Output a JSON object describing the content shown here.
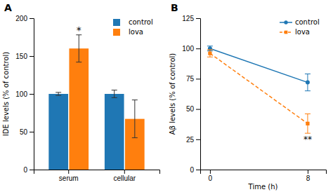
{
  "chart_data": [
    {
      "type": "bar",
      "title": "A",
      "categories": [
        "serum",
        "cellular"
      ],
      "series": [
        {
          "name": "control",
          "values": [
            100,
            100
          ],
          "errors": [
            2,
            5
          ]
        },
        {
          "name": "lova",
          "values": [
            160,
            67
          ],
          "errors": [
            18,
            25
          ]
        }
      ],
      "ylabel": "IDE levels (% of control)",
      "ylim": [
        0,
        200
      ],
      "yticks": [
        0,
        50,
        100,
        150,
        200
      ],
      "annotations": [
        {
          "text": "*",
          "x": "serum",
          "series": "lova"
        }
      ],
      "legend": "upper right",
      "grid": false
    },
    {
      "type": "line",
      "title": "B",
      "x": [
        0,
        8
      ],
      "series": [
        {
          "name": "control",
          "values": [
            100,
            72
          ],
          "errors": [
            2,
            7
          ],
          "marker": "circle",
          "line_style": "solid"
        },
        {
          "name": "lova",
          "values": [
            96,
            38
          ],
          "errors": [
            3,
            8
          ],
          "marker": "square",
          "line_style": "dashed"
        }
      ],
      "xlabel": "Time (h)",
      "ylabel": "Aβ levels (% of control)",
      "xlim": [
        -0.8,
        9.5
      ],
      "xticks": [
        0,
        8
      ],
      "ylim": [
        0,
        125
      ],
      "yticks": [
        0,
        25,
        50,
        75,
        100,
        125
      ],
      "annotations": [
        {
          "text": "**",
          "x": 8,
          "series": "lova"
        }
      ],
      "legend": "upper right",
      "grid": false
    }
  ]
}
